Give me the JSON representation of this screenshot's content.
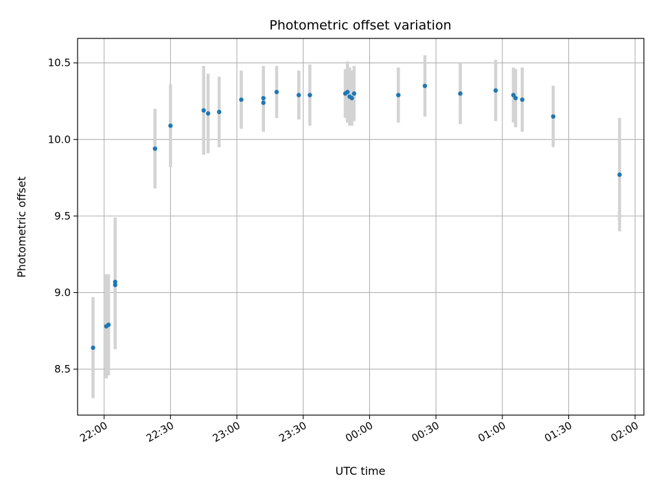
{
  "chart_data": {
    "type": "scatter",
    "title": "Photometric offset variation",
    "xlabel": "UTC time",
    "ylabel": "Photometric offset",
    "x_unit": "UTC clock time, crossing midnight (times after 00:00 are on the following day)",
    "xlim": [
      "21:48",
      "02:04"
    ],
    "ylim": [
      8.2,
      10.66
    ],
    "x_ticks": [
      "22:00",
      "22:30",
      "23:00",
      "23:30",
      "00:00",
      "00:30",
      "01:00",
      "01:30",
      "02:00"
    ],
    "y_ticks": [
      "8.5",
      "9.0",
      "9.5",
      "10.0",
      "10.5"
    ],
    "grid": true,
    "legend": "none",
    "colors": {
      "point": "#1f77b4",
      "errorbar": "#d3d3d3",
      "grid": "#b0b0b0"
    },
    "points": [
      {
        "time": "21:55",
        "y": 8.64,
        "err": 0.33
      },
      {
        "time": "22:01",
        "y": 8.78,
        "err": 0.34
      },
      {
        "time": "22:02",
        "y": 8.79,
        "err": 0.33
      },
      {
        "time": "22:05",
        "y": 9.07,
        "err": 0.42
      },
      {
        "time": "22:05",
        "y": 9.05,
        "err": 0.42
      },
      {
        "time": "22:23",
        "y": 9.94,
        "err": 0.26
      },
      {
        "time": "22:30",
        "y": 10.09,
        "err": 0.27
      },
      {
        "time": "22:45",
        "y": 10.19,
        "err": 0.29
      },
      {
        "time": "22:47",
        "y": 10.17,
        "err": 0.26
      },
      {
        "time": "22:52",
        "y": 10.18,
        "err": 0.23
      },
      {
        "time": "23:02",
        "y": 10.26,
        "err": 0.19
      },
      {
        "time": "23:12",
        "y": 10.24,
        "err": 0.19
      },
      {
        "time": "23:12",
        "y": 10.27,
        "err": 0.21
      },
      {
        "time": "23:18",
        "y": 10.31,
        "err": 0.17
      },
      {
        "time": "23:28",
        "y": 10.29,
        "err": 0.16
      },
      {
        "time": "23:33",
        "y": 10.29,
        "err": 0.2
      },
      {
        "time": "23:49",
        "y": 10.3,
        "err": 0.16
      },
      {
        "time": "23:50",
        "y": 10.31,
        "err": 0.2
      },
      {
        "time": "23:51",
        "y": 10.28,
        "err": 0.19
      },
      {
        "time": "23:52",
        "y": 10.27,
        "err": 0.18
      },
      {
        "time": "23:53",
        "y": 10.3,
        "err": 0.18
      },
      {
        "time": "00:13",
        "y": 10.29,
        "err": 0.18
      },
      {
        "time": "00:25",
        "y": 10.35,
        "err": 0.2
      },
      {
        "time": "00:41",
        "y": 10.3,
        "err": 0.2
      },
      {
        "time": "00:57",
        "y": 10.32,
        "err": 0.2
      },
      {
        "time": "01:05",
        "y": 10.29,
        "err": 0.18
      },
      {
        "time": "01:06",
        "y": 10.27,
        "err": 0.19
      },
      {
        "time": "01:09",
        "y": 10.26,
        "err": 0.21
      },
      {
        "time": "01:23",
        "y": 10.15,
        "err": 0.2
      },
      {
        "time": "01:53",
        "y": 9.77,
        "err": 0.37
      }
    ]
  }
}
